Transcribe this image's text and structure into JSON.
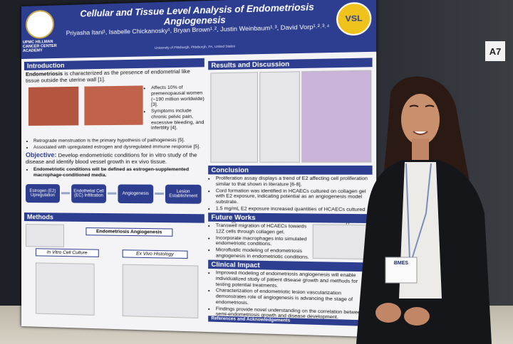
{
  "sign": "A7",
  "badge": "BMES",
  "poster": {
    "title": "Cellular and Tissue Level Analysis of Endometriosis Angiogenesis",
    "authors": "Priyasha Itani¹, Isabelle Chickanosky¹, Bryan Brown¹˒², Justin Weinbaum¹˒³, David Vorp¹˒²˒³˒⁴",
    "institution": "University of Pittsburgh, Pittsburgh, PA, United States",
    "logo_left": "UPMC HILLMAN CANCER CENTER ACADEMY",
    "logo_right": "VSL",
    "intro": {
      "heading": "Introduction",
      "lead_term": "Endometriosis",
      "lead": "is characterized as the presence of endometrial like tissue outside the uterine wall [1].",
      "side_bullets": [
        "Affects 10% of premenopausal women (~190 million worldwide) [3].",
        "Symptoms include chronic pelvic pain, excessive bleeding, and infertility [4]."
      ],
      "bullets": [
        "Retrograde menstruation is the primary hypothesis of pathogenesis [5].",
        "Associated with upregulated estrogen and dysregulated immune response [5]."
      ],
      "objective_label": "Objective:",
      "objective": "Develop endometriotic conditions for in vitro study of the disease and identify blood vessel growth in ex vivo tissue.",
      "sub_bullet": "Endometriotic conditions will be defined as estrogen-supplemented macrophage-conditioned media."
    },
    "flow": [
      "Estrogen (E2) Upregulation",
      "Endothelial Cell (EC) Infiltration",
      "Angiogenesis",
      "Lesion Establishment"
    ],
    "methods": {
      "heading": "Methods",
      "title": "Endometriosis Angiogenesis",
      "in_vitro": "In Vitro Cell Culture",
      "ex_vivo": "Ex Vivo Histology"
    },
    "results": {
      "heading": "Results and Discussion"
    },
    "conclusion": {
      "heading": "Conclusion",
      "bullets": [
        "Proliferation assay displays a trend of E2 affecting cell proliferation similar to that shown in literature [6-8].",
        "Cord formation was identified in HCAECs cultured on collagen gel with E2 exposure, indicating potential as an angiogenesis model substrate.",
        "1.5 mg/mL E2 exposure increased quantities of HCAECs cultured on collagen gel.",
        "Histology indicates a variation of vessel size in all tissue types."
      ]
    },
    "future": {
      "heading": "Future Works",
      "bullets": [
        "Transwell migration of HCAECs towards 12Z cells through collagen gel.",
        "Incorporate macrophages into simulated endometriotic conditions.",
        "Microfluidic modeling of endometriosis angiogenesis in endometriotic conditions."
      ]
    },
    "impact": {
      "heading": "Clinical Impact",
      "bullets": [
        "Improved modeling of endometriosis angiogenesis will enable individualized study of patient disease growth and methods for testing potential treatments.",
        "Characterization of endometriotic lesion vascularization demonstrates role of angiogenesis is advancing the stage of endometriosis.",
        "Findings provide novel understanding on the correlation between semi-endometriosis growth and disease development."
      ]
    },
    "references": "References and Acknowledgements"
  }
}
